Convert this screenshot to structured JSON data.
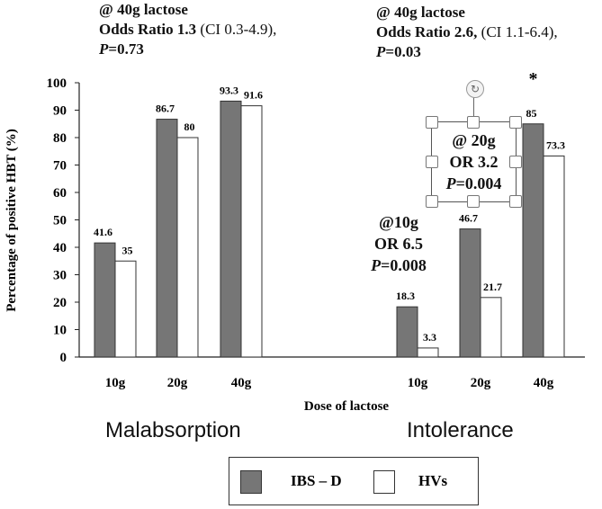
{
  "chart_data": {
    "type": "bar",
    "groups": [
      {
        "label": "Malabsorption",
        "categories": [
          "10g",
          "20g",
          "40g"
        ]
      },
      {
        "label": "Intolerance",
        "categories": [
          "10g",
          "20g",
          "40g"
        ]
      }
    ],
    "series": [
      {
        "name": "IBS – D",
        "color": "#767676",
        "values": {
          "Malabsorption": [
            41.6,
            86.7,
            93.3
          ],
          "Intolerance": [
            18.3,
            46.7,
            85
          ]
        },
        "labels": {
          "Malabsorption": [
            "41.6",
            "86.7",
            "93.3"
          ],
          "Intolerance": [
            "18.3",
            "46.7",
            "85"
          ]
        }
      },
      {
        "name": "HVs",
        "color": "#ffffff",
        "values": {
          "Malabsorption": [
            35,
            80,
            91.6
          ],
          "Intolerance": [
            3.3,
            21.7,
            73.3
          ]
        },
        "labels": {
          "Malabsorption": [
            "35",
            "80",
            "91.6"
          ],
          "Intolerance": [
            "3.3",
            "21.7",
            "73.3"
          ]
        }
      }
    ],
    "xlabel": "Dose of lactose",
    "ylabel": "Percentage of positive HBT (%)",
    "ylim": [
      0,
      100
    ],
    "yticks": [
      0,
      10,
      20,
      30,
      40,
      50,
      60,
      70,
      80,
      90,
      100
    ],
    "grid": false,
    "legend": "bottom",
    "significance_marker": "*",
    "annotations": {
      "malabsorption_top": {
        "line1": "@ 40g lactose",
        "or_bold": "Odds Ratio 1.3",
        "ci": " (CI 0.3-4.9),",
        "p_italic": "P",
        "p_rest": "=0.73"
      },
      "intolerance_top": {
        "line1": "@ 40g lactose",
        "or_bold": "Odds Ratio 2.6,",
        "ci": " (CI 1.1-6.4),",
        "p_italic": "P",
        "p_rest": "=0.03"
      },
      "intolerance_10g": {
        "line1": "@10g",
        "line2": "OR 6.5",
        "p_italic": "P",
        "p_rest": "=0.008"
      },
      "intolerance_20g": {
        "line1": "@ 20g",
        "line2": "OR 3.2",
        "p_italic": "P",
        "p_rest": "=0.004"
      }
    }
  }
}
